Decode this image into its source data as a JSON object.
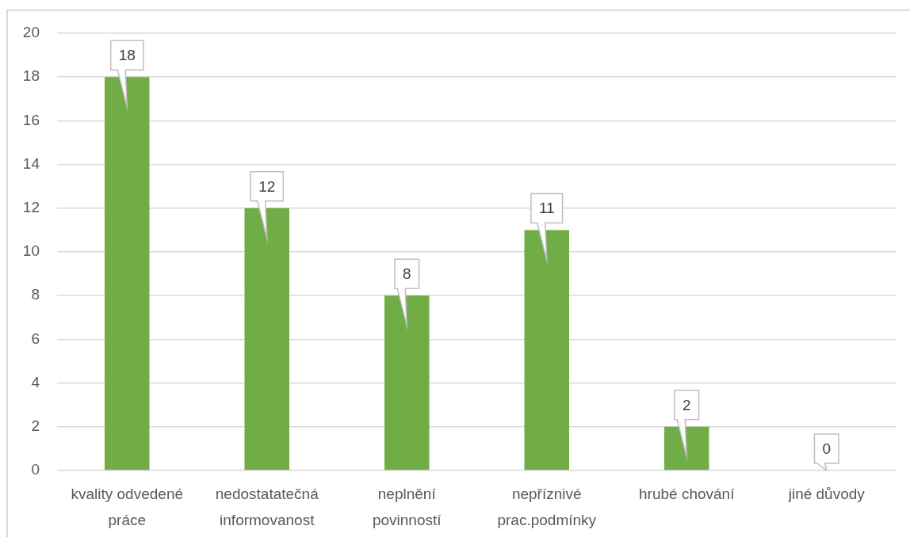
{
  "chart_data": {
    "type": "bar",
    "categories": [
      "kvality odvedené práce",
      "nedostatatečná informovanost",
      "neplnění povinností",
      "nepříznivé prac.podmínky",
      "hrubé chování",
      "jiné důvody"
    ],
    "values": [
      18,
      12,
      8,
      11,
      2,
      0
    ],
    "color": "#70ad47",
    "ylim": [
      0,
      20
    ],
    "yticks": [
      0,
      2,
      4,
      6,
      8,
      10,
      12,
      14,
      16,
      18,
      20
    ],
    "grid": "y",
    "data_labels": true
  }
}
